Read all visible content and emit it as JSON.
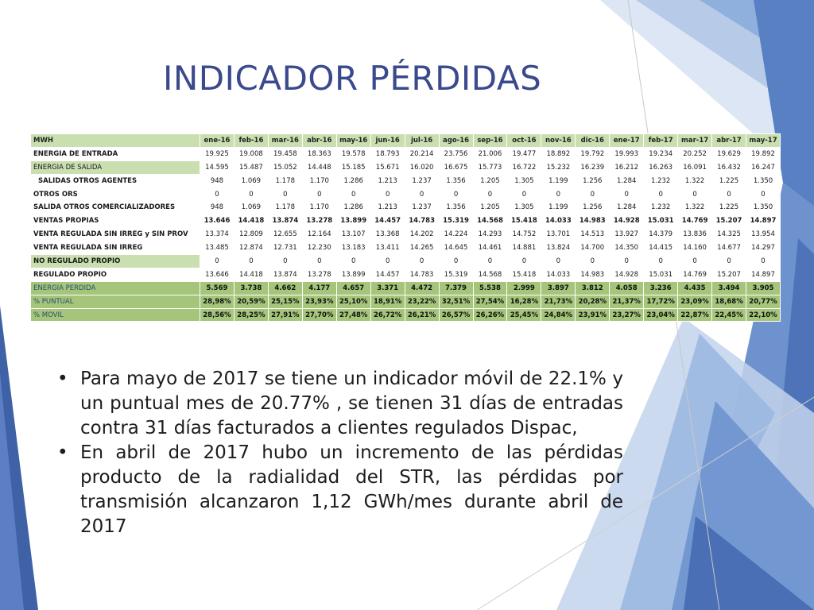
{
  "title": "INDICADOR  PÉRDIDAS",
  "table": {
    "header_label": "MWH",
    "columns": [
      "ene-16",
      "feb-16",
      "mar-16",
      "abr-16",
      "may-16",
      "jun-16",
      "jul-16",
      "ago-16",
      "sep-16",
      "oct-16",
      "nov-16",
      "dic-16",
      "ene-17",
      "feb-17",
      "mar-17",
      "abr-17",
      "may-17"
    ],
    "rows": [
      {
        "label": "ENERGIA DE ENTRADA",
        "values": [
          "19.925",
          "19.008",
          "19.458",
          "18.363",
          "19.578",
          "18.793",
          "20.214",
          "23.756",
          "21.006",
          "19.477",
          "18.892",
          "19.792",
          "19.993",
          "19.234",
          "20.252",
          "19.629",
          "19.892"
        ]
      },
      {
        "label": "ENERGIA DE SALIDA",
        "values": [
          "14.595",
          "15.487",
          "15.052",
          "14.448",
          "15.185",
          "15.671",
          "16.020",
          "16.675",
          "15.773",
          "16.722",
          "15.232",
          "16.239",
          "16.212",
          "16.263",
          "16.091",
          "16.432",
          "16.247"
        ]
      },
      {
        "label": "SALIDAS OTROS AGENTES",
        "values": [
          "948",
          "1.069",
          "1.178",
          "1.170",
          "1.286",
          "1.213",
          "1.237",
          "1.356",
          "1.205",
          "1.305",
          "1.199",
          "1.256",
          "1.284",
          "1.232",
          "1.322",
          "1.225",
          "1.350"
        ]
      },
      {
        "label": "OTROS ORS",
        "values": [
          "0",
          "0",
          "0",
          "0",
          "0",
          "0",
          "0",
          "0",
          "0",
          "0",
          "0",
          "0",
          "0",
          "0",
          "0",
          "0",
          "0"
        ]
      },
      {
        "label": "SALIDA OTROS COMERCIALIZADORES",
        "values": [
          "948",
          "1.069",
          "1.178",
          "1.170",
          "1.286",
          "1.213",
          "1.237",
          "1.356",
          "1.205",
          "1.305",
          "1.199",
          "1.256",
          "1.284",
          "1.232",
          "1.322",
          "1.225",
          "1.350"
        ]
      },
      {
        "label": "VENTAS PROPIAS",
        "values": [
          "13.646",
          "14.418",
          "13.874",
          "13.278",
          "13.899",
          "14.457",
          "14.783",
          "15.319",
          "14.568",
          "15.418",
          "14.033",
          "14.983",
          "14.928",
          "15.031",
          "14.769",
          "15.207",
          "14.897"
        ]
      },
      {
        "label": "VENTA REGULADA SIN IRREG y SIN PROV",
        "values": [
          "13.374",
          "12.809",
          "12.655",
          "12.164",
          "13.107",
          "13.368",
          "14.202",
          "14.224",
          "14.293",
          "14.752",
          "13.701",
          "14.513",
          "13.927",
          "14.379",
          "13.836",
          "14.325",
          "13.954"
        ]
      },
      {
        "label": "VENTA REGULADA SIN IRREG",
        "values": [
          "13.485",
          "12.874",
          "12.731",
          "12.230",
          "13.183",
          "13.411",
          "14.265",
          "14.645",
          "14.461",
          "14.881",
          "13.824",
          "14.700",
          "14.350",
          "14.415",
          "14.160",
          "14.677",
          "14.297"
        ]
      },
      {
        "label": "NO REGULADO PROPIO",
        "values": [
          "0",
          "0",
          "0",
          "0",
          "0",
          "0",
          "0",
          "0",
          "0",
          "0",
          "0",
          "0",
          "0",
          "0",
          "0",
          "0",
          "0"
        ]
      },
      {
        "label": "REGULADO PROPIO",
        "values": [
          "13.646",
          "14.418",
          "13.874",
          "13.278",
          "13.899",
          "14.457",
          "14.783",
          "15.319",
          "14.568",
          "15.418",
          "14.033",
          "14.983",
          "14.928",
          "15.031",
          "14.769",
          "15.207",
          "14.897"
        ]
      },
      {
        "label": "ENERGIA PERDIDA",
        "values": [
          "5.569",
          "3.738",
          "4.662",
          "4.177",
          "4.657",
          "3.371",
          "4.472",
          "7.379",
          "5.538",
          "2.999",
          "3.897",
          "3.812",
          "4.058",
          "3.236",
          "4.435",
          "3.494",
          "3.905"
        ]
      },
      {
        "label": "% PUNTUAL",
        "values": [
          "28,98%",
          "20,59%",
          "25,15%",
          "23,93%",
          "25,10%",
          "18,91%",
          "23,22%",
          "32,51%",
          "27,54%",
          "16,28%",
          "21,73%",
          "20,28%",
          "21,37%",
          "17,72%",
          "23,09%",
          "18,68%",
          "20,77%"
        ]
      },
      {
        "label": "% MOVIL",
        "values": [
          "28,56%",
          "28,25%",
          "27,91%",
          "27,70%",
          "27,48%",
          "26,72%",
          "26,21%",
          "26,57%",
          "26,26%",
          "25,45%",
          "24,84%",
          "23,91%",
          "23,27%",
          "23,04%",
          "22,87%",
          "22,45%",
          "22,10%"
        ]
      }
    ]
  },
  "bullets": [
    "Para mayo de 2017 se tiene un indicador móvil de 22.1% y un puntual mes de 20.77% , se tienen 31 días de entradas contra 31 días facturados a clientes regulados Dispac,",
    "En abril de 2017 hubo un incremento de las pérdidas producto de la radialidad del STR, las pérdidas por transmisión alcanzaron 1,12 GWh/mes durante abril de 2017"
  ],
  "bullet_symbol": "•",
  "colors": {
    "title": "#3a4a8c",
    "header_green": "#c9dfb0",
    "dark_green": "#a4c57a",
    "accent_blue": "#4a7fc1"
  }
}
